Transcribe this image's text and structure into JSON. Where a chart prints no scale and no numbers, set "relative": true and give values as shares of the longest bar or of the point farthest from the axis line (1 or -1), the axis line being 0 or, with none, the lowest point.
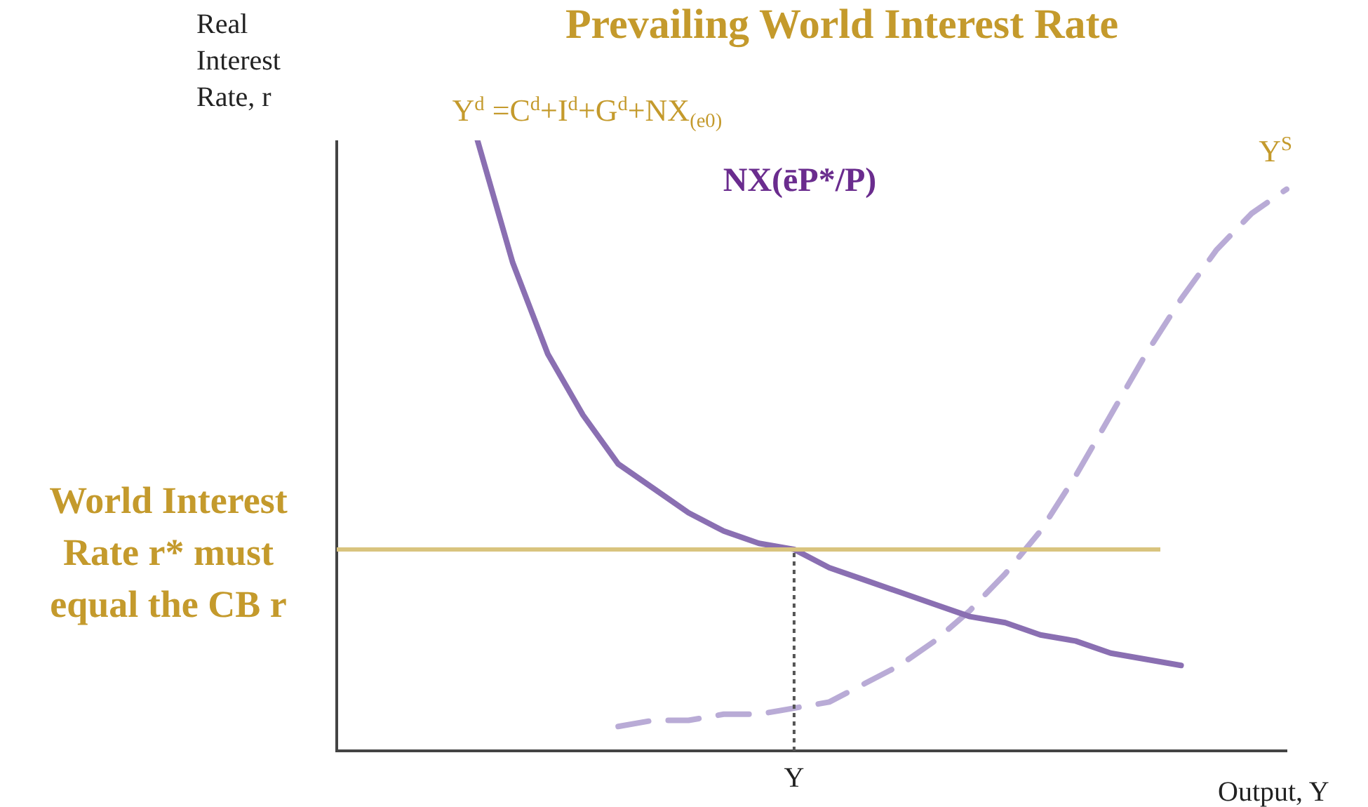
{
  "chart_data": {
    "type": "line",
    "title": "Prevailing World Interest Rate",
    "xlabel": "Output, Y",
    "ylabel": "Real Interest Rate, r",
    "relative": true,
    "legend": false,
    "grid": false,
    "marker": "none",
    "categories": [
      null,
      null,
      null,
      null,
      null,
      null,
      null,
      null,
      null,
      null,
      null,
      null,
      null,
      null,
      null,
      null,
      null,
      null,
      null,
      null,
      null,
      null,
      null,
      null,
      null,
      null,
      null,
      null
    ],
    "series": [
      {
        "name": "Y$^{d}$ =C$^{d}$+I$^{d}$+G$^{d}$+NX$_{(e0)}$",
        "color": "#8a6fb2",
        "line_style": "solid",
        "values": [
          null,
          null,
          null,
          null,
          1,
          0.8,
          0.65,
          0.55,
          0.47,
          0.43,
          0.39,
          0.36,
          0.34,
          0.33,
          0.3,
          0.28,
          0.26,
          0.24,
          0.22,
          0.21,
          0.19,
          0.18,
          0.16,
          0.15,
          0.14,
          null,
          null,
          null
        ]
      },
      {
        "name": "Y$^{S}$",
        "color": "#b9abd6",
        "line_style": "dashed",
        "values": [
          null,
          null,
          null,
          null,
          null,
          null,
          null,
          null,
          0.04,
          0.05,
          0.05,
          0.06,
          0.06,
          0.07,
          0.08,
          0.11,
          0.14,
          0.18,
          0.23,
          0.29,
          0.36,
          0.45,
          0.55,
          0.65,
          0.74,
          0.82,
          0.88,
          0.92
        ]
      }
    ],
    "ref_lines": [
      {
        "axis": "y",
        "value": 0.33,
        "label": "World Interest Rate r* must equal the CB r",
        "color": "#d9c47e",
        "line_style": "solid"
      }
    ],
    "annotations": [
      "NX(ēP*/P)",
      "Y"
    ]
  }
}
